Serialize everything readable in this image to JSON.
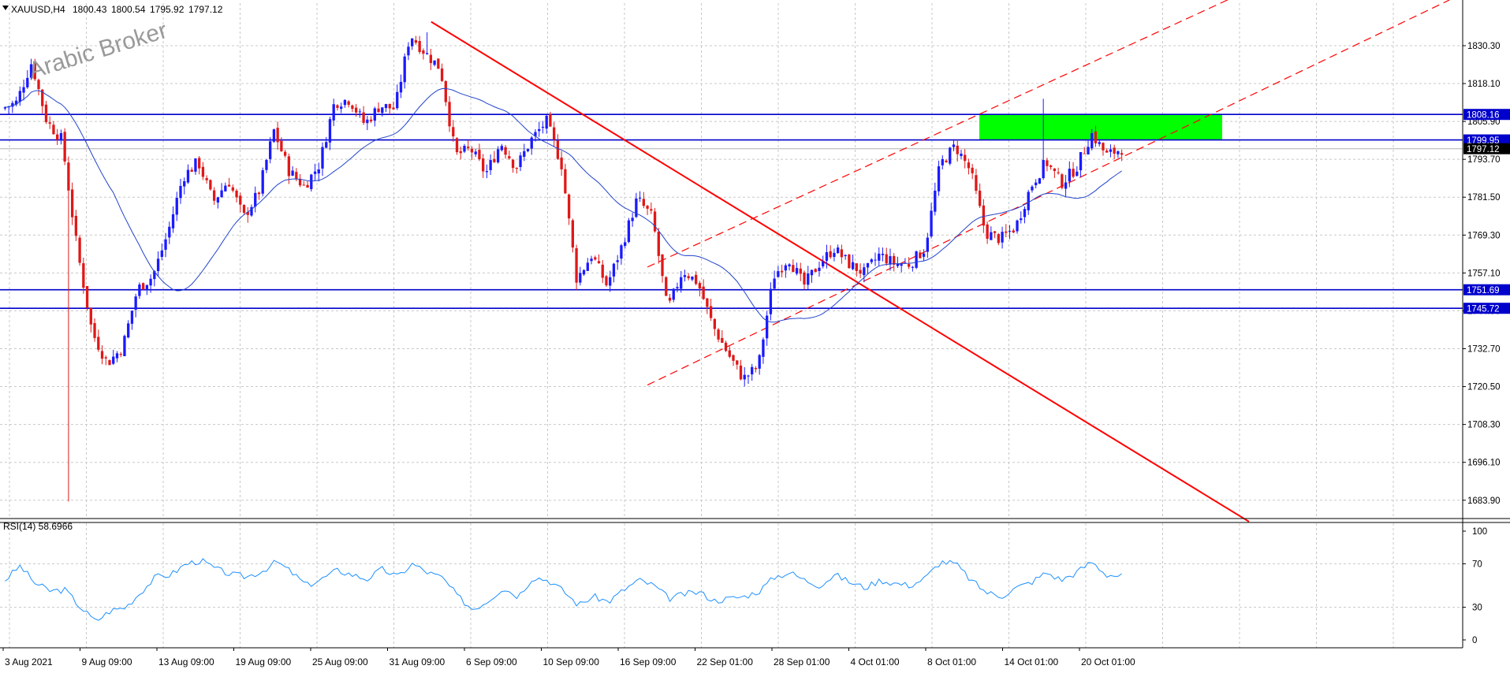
{
  "chart_data": [
    {
      "type": "candlestick",
      "header": {
        "symbol_tf": "XAUUSD,H4",
        "values": [
          "1800.43",
          "1800.54",
          "1795.92",
          "1797.12"
        ]
      },
      "watermark": "Arabic Broker",
      "ylim": [
        1678.0,
        1844.0
      ],
      "y_ticks": [
        "1830.30",
        "1818.10",
        "1805.90",
        "1793.70",
        "1781.50",
        "1769.30",
        "1757.10",
        "1744.90",
        "1732.70",
        "1720.50",
        "1708.30",
        "1696.10",
        "1683.90"
      ],
      "x_ticks": [
        "3 Aug 2021",
        "9 Aug 09:00",
        "13 Aug 09:00",
        "19 Aug 09:00",
        "25 Aug 09:00",
        "31 Aug 09:00",
        "6 Sep 09:00",
        "10 Sep 09:00",
        "16 Sep 09:00",
        "22 Sep 01:00",
        "28 Sep 01:00",
        "4 Oct 01:00",
        "8 Oct 01:00",
        "14 Oct 01:00",
        "20 Oct 01:00"
      ],
      "horizontal_levels": [
        {
          "label": "1808.16",
          "value": 1808.16
        },
        {
          "label": "1799.95",
          "value": 1799.95
        },
        {
          "label": "1751.69",
          "value": 1751.69
        },
        {
          "label": "1745.72",
          "value": 1745.72
        }
      ],
      "current_price": {
        "label": "1797.12",
        "value": 1797.12
      },
      "zone": {
        "y_low": 1799.95,
        "y_high": 1808.16
      },
      "price_path": [
        1810,
        1812,
        1825,
        1806,
        1800,
        1765,
        1738,
        1728,
        1733,
        1752,
        1756,
        1770,
        1788,
        1793,
        1780,
        1787,
        1775,
        1783,
        1803,
        1790,
        1785,
        1792,
        1812,
        1813,
        1805,
        1811,
        1810,
        1834,
        1828,
        1823,
        1795,
        1797,
        1789,
        1799,
        1791,
        1800,
        1806,
        1792,
        1755,
        1763,
        1753,
        1766,
        1781,
        1775,
        1745,
        1758,
        1754,
        1740,
        1731,
        1723,
        1727,
        1756,
        1762,
        1753,
        1760,
        1765,
        1760,
        1757,
        1763,
        1760,
        1760,
        1765,
        1792,
        1798,
        1790,
        1770,
        1768,
        1772,
        1785,
        1793,
        1786,
        1791,
        1802,
        1795,
        1797.12
      ],
      "colors": {
        "up": "#1a1aff",
        "down": "#e01818",
        "ma": "#2244cc",
        "level": "#0000cc",
        "trend": "#ff0000",
        "zone": "#00ff00"
      }
    },
    {
      "type": "line",
      "title": "RSI(14) 58.6966",
      "ylim": [
        0,
        100
      ],
      "y_ticks": [
        "100",
        "70",
        "30",
        "0"
      ],
      "color": "#1e90ff",
      "path": [
        55,
        68,
        52,
        45,
        46,
        30,
        17,
        27,
        30,
        44,
        58,
        60,
        70,
        73,
        65,
        60,
        58,
        63,
        72,
        62,
        50,
        56,
        64,
        60,
        56,
        65,
        58,
        70,
        62,
        57,
        40,
        28,
        36,
        48,
        40,
        58,
        55,
        45,
        32,
        40,
        35,
        46,
        55,
        50,
        38,
        42,
        44,
        36,
        38,
        40,
        45,
        58,
        62,
        55,
        50,
        60,
        53,
        48,
        55,
        52,
        50,
        57,
        72,
        70,
        55,
        44,
        40,
        48,
        53,
        62,
        55,
        62,
        72,
        60,
        58.7
      ]
    }
  ]
}
